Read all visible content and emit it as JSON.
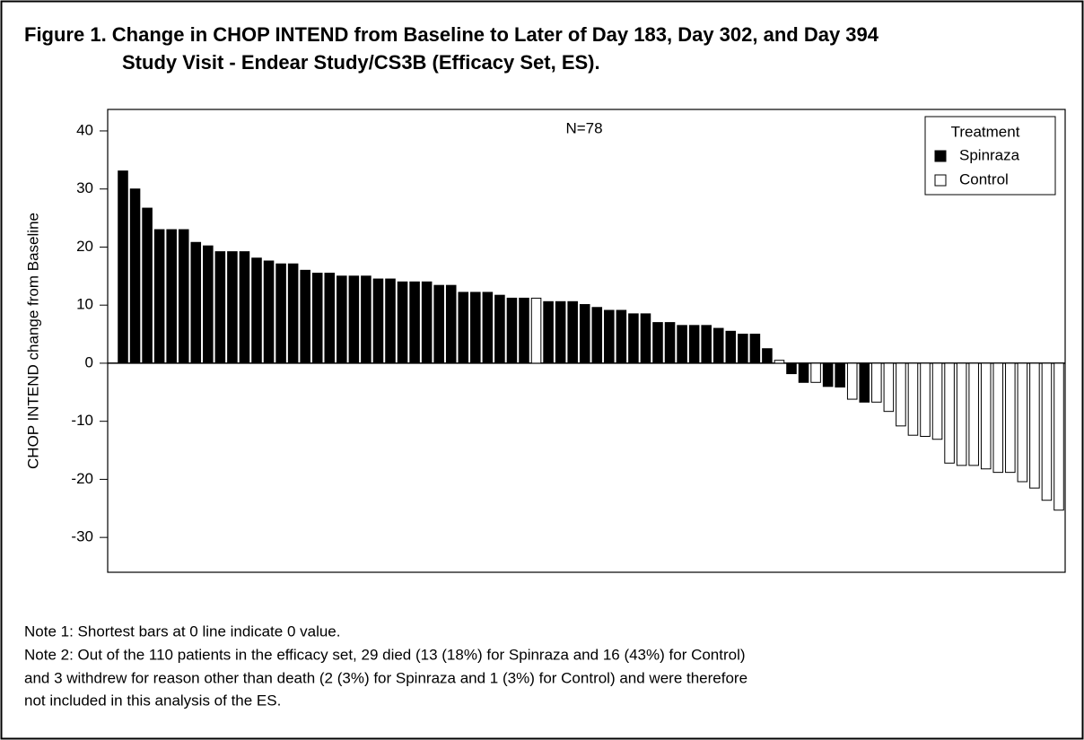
{
  "chart_data": {
    "type": "bar",
    "title": [
      "Figure 1. Change in CHOP INTEND from Baseline to Later of Day 183, Day 302, and Day 394",
      "Study Visit - Endear Study/CS3B (Efficacy Set, ES)."
    ],
    "annotation": "N=78",
    "ylabel": "CHOP INTEND change from Baseline",
    "legend_title": "Treatment",
    "legend": "upper right",
    "ylim": [
      -36,
      43.7
    ],
    "yticks": [
      40,
      30,
      20,
      10,
      0,
      -10,
      -20,
      -30
    ],
    "series": [
      {
        "name": "Spinraza",
        "color": "#000000",
        "values": [
          33.1,
          30,
          26.7,
          23,
          23,
          23,
          20.8,
          20.2,
          19.2,
          19.2,
          19.2,
          18.1,
          17.6,
          17.1,
          17.1,
          16,
          15.5,
          15.5,
          15,
          15,
          15,
          14.5,
          14.5,
          14,
          14,
          14,
          13.4,
          13.4,
          12.2,
          12.2,
          12.2,
          11.7,
          11.2,
          11.2,
          null,
          10.6,
          10.6,
          10.6,
          10.1,
          9.6,
          9.1,
          9.1,
          8.5,
          8.5,
          7,
          7,
          6.5,
          6.5,
          6.5,
          6,
          5.5,
          5,
          5,
          2.5,
          null,
          -1.8,
          -3.3,
          null,
          -4,
          -4.1,
          null,
          -6.7,
          null,
          null,
          null,
          null,
          null,
          null,
          null,
          null,
          null,
          null,
          null,
          null,
          null,
          null,
          null,
          null
        ]
      },
      {
        "name": "Control",
        "color": "#ffffff",
        "values": [
          null,
          null,
          null,
          null,
          null,
          null,
          null,
          null,
          null,
          null,
          null,
          null,
          null,
          null,
          null,
          null,
          null,
          null,
          null,
          null,
          null,
          null,
          null,
          null,
          null,
          null,
          null,
          null,
          null,
          null,
          null,
          null,
          null,
          null,
          11.2,
          null,
          null,
          null,
          null,
          null,
          null,
          null,
          null,
          null,
          null,
          null,
          null,
          null,
          null,
          null,
          null,
          null,
          null,
          null,
          0.5,
          null,
          null,
          -3.3,
          null,
          null,
          -6.2,
          null,
          -6.7,
          -8.3,
          -10.8,
          -12.4,
          -12.6,
          -13.1,
          -17.2,
          -17.6,
          -17.6,
          -18.2,
          -18.8,
          -18.8,
          -20.4,
          -21.5,
          -23.6,
          -25.3
        ]
      }
    ]
  },
  "notes": [
    "Note 1: Shortest bars at 0 line indicate 0 value.",
    "Note 2: Out of the 110 patients in the efficacy set, 29 died (13 (18%) for Spinraza and 16 (43%) for Control)",
    "and 3 withdrew for reason other than death (2 (3%) for Spinraza and 1 (3%) for Control) and were therefore",
    "not included in this analysis of the ES."
  ]
}
